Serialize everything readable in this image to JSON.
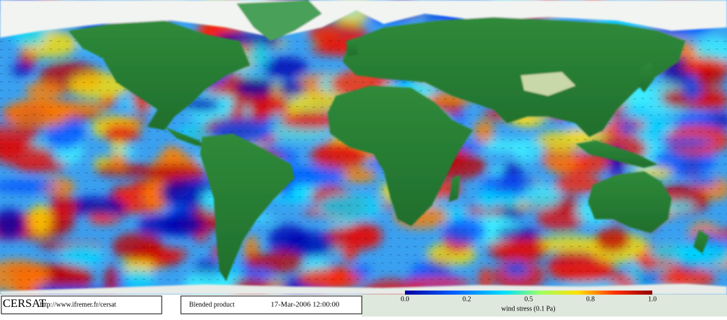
{
  "footer": {
    "logo": "CERSAT",
    "url": "http://www.ifremer.fr/cersat",
    "product": "Blended product",
    "datetime": "17-Mar-2006 12:00:00"
  },
  "colorbar": {
    "tick_labels": [
      "0.0",
      "0.2",
      "0.5",
      "0.8",
      "1.0"
    ],
    "title": "wind stress (0.1 Pa)"
  }
}
